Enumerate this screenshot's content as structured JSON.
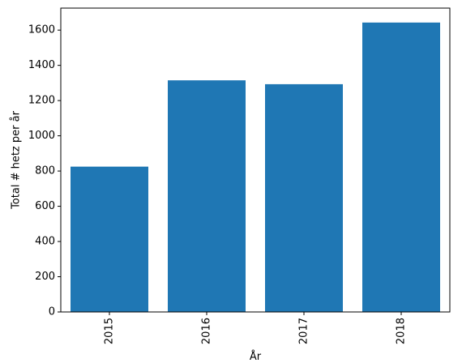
{
  "chart_data": {
    "type": "bar",
    "categories": [
      "2015",
      "2016",
      "2017",
      "2018"
    ],
    "values": [
      825,
      1315,
      1293,
      1643
    ],
    "title": "",
    "xlabel": "År",
    "ylabel": "Total # hetz per år",
    "ylim": [
      0,
      1725
    ],
    "yticks": [
      0,
      200,
      400,
      600,
      800,
      1000,
      1200,
      1400,
      1600
    ],
    "grid": false,
    "legend": "none",
    "bar_color": "#1f77b4"
  }
}
